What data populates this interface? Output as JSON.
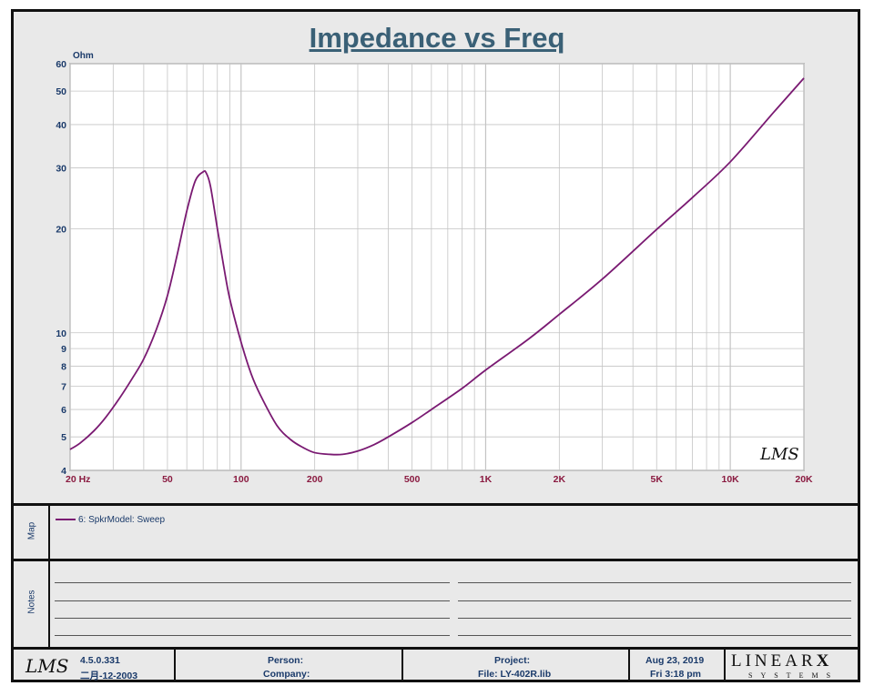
{
  "chart_data": {
    "type": "line",
    "title": "Impedance vs Freq",
    "ylabel": "Ohm",
    "xscale": "log",
    "yscale": "log",
    "xlim": [
      20,
      20000
    ],
    "ylim": [
      4,
      60
    ],
    "grid": true,
    "x_tick_labels": [
      {
        "value": 20,
        "label": "20  Hz"
      },
      {
        "value": 50,
        "label": "50"
      },
      {
        "value": 100,
        "label": "100"
      },
      {
        "value": 200,
        "label": "200"
      },
      {
        "value": 500,
        "label": "500"
      },
      {
        "value": 1000,
        "label": "1K"
      },
      {
        "value": 2000,
        "label": "2K"
      },
      {
        "value": 5000,
        "label": "5K"
      },
      {
        "value": 10000,
        "label": "10K"
      },
      {
        "value": 20000,
        "label": "20K"
      }
    ],
    "y_tick_labels": [
      {
        "value": 60,
        "label": "60"
      },
      {
        "value": 50,
        "label": "50"
      },
      {
        "value": 40,
        "label": "40"
      },
      {
        "value": 30,
        "label": "30"
      },
      {
        "value": 20,
        "label": "20"
      },
      {
        "value": 10,
        "label": "10"
      },
      {
        "value": 9,
        "label": "9"
      },
      {
        "value": 8,
        "label": "8"
      },
      {
        "value": 7,
        "label": "7"
      },
      {
        "value": 6,
        "label": "6"
      },
      {
        "value": 5,
        "label": "5"
      },
      {
        "value": 4,
        "label": "4"
      }
    ],
    "series": [
      {
        "name": "6: SpkrModel: Sweep",
        "color": "#7a1a72",
        "x": [
          20,
          22,
          25,
          28,
          32,
          36,
          40,
          45,
          50,
          55,
          60,
          65,
          70,
          72,
          75,
          80,
          85,
          90,
          100,
          110,
          120,
          140,
          160,
          180,
          200,
          230,
          260,
          300,
          350,
          400,
          500,
          600,
          800,
          1000,
          1500,
          2000,
          3000,
          5000,
          7000,
          10000,
          15000,
          20000
        ],
        "y": [
          4.6,
          4.8,
          5.2,
          5.7,
          6.5,
          7.4,
          8.4,
          10.2,
          12.8,
          17.0,
          22.5,
          27.5,
          29.2,
          29.0,
          26.5,
          20.0,
          15.5,
          12.5,
          9.4,
          7.6,
          6.6,
          5.4,
          4.9,
          4.65,
          4.5,
          4.45,
          4.45,
          4.55,
          4.75,
          5.0,
          5.5,
          6.0,
          6.9,
          7.8,
          9.6,
          11.3,
          14.3,
          19.9,
          24.6,
          31.2,
          43.3,
          54.5
        ]
      }
    ]
  },
  "map": {
    "label": "Map",
    "legend_entry": "6: SpkrModel: Sweep"
  },
  "notes": {
    "label": "Notes"
  },
  "footer": {
    "logo": "LMS",
    "version": "4.5.0.331",
    "build_date": "二月-12-2003",
    "person_label": "Person:",
    "company_label": "Company:",
    "project_label": "Project:",
    "file_label": "File: LY-402R.lib",
    "date": "Aug 23, 2019",
    "time": "Fri  3:18 pm",
    "brand_main": "LINEAR",
    "brand_x": "X",
    "brand_sub": "SYSTEMS"
  },
  "watermark": "LMS",
  "colors": {
    "title": "#3a6076",
    "axis_text": "#1a3a6a",
    "x_tick_text": "#8a1a40",
    "curve": "#7a1a72",
    "grid": "#c4c4c4",
    "frame": "#111111"
  }
}
